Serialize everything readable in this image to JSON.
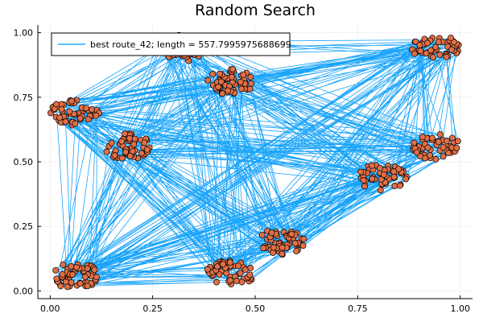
{
  "chart_data": {
    "type": "scatter",
    "title": "Random Search",
    "xlabel": "",
    "ylabel": "",
    "xlim": [
      -0.03,
      1.03
    ],
    "ylim": [
      -0.03,
      1.03
    ],
    "grid": true,
    "legend_position": "top-left",
    "x_ticks": [
      0.0,
      0.25,
      0.5,
      0.75,
      1.0
    ],
    "x_tick_labels": [
      "0.00",
      "0.25",
      "0.50",
      "0.75",
      "1.00"
    ],
    "y_ticks": [
      0.0,
      0.25,
      0.5,
      0.75,
      1.0
    ],
    "y_tick_labels": [
      "0.00",
      "0.25",
      "0.50",
      "0.75",
      "1.00"
    ],
    "series": [
      {
        "name": "best route_42; length = 557.7995975688699",
        "kind": "line",
        "color": "#009AFA"
      },
      {
        "kind": "scatter",
        "color": "#E26F46",
        "clusters": [
          {
            "cx": 0.06,
            "cy": 0.06,
            "n": 60
          },
          {
            "cx": 0.06,
            "cy": 0.69,
            "n": 55
          },
          {
            "cx": 0.19,
            "cy": 0.56,
            "n": 55
          },
          {
            "cx": 0.32,
            "cy": 0.94,
            "n": 45
          },
          {
            "cx": 0.44,
            "cy": 0.81,
            "n": 55
          },
          {
            "cx": 0.44,
            "cy": 0.07,
            "n": 55
          },
          {
            "cx": 0.56,
            "cy": 0.19,
            "n": 55
          },
          {
            "cx": 0.81,
            "cy": 0.44,
            "n": 50
          },
          {
            "cx": 0.94,
            "cy": 0.94,
            "n": 50
          },
          {
            "cx": 0.94,
            "cy": 0.56,
            "n": 50
          }
        ]
      }
    ]
  }
}
